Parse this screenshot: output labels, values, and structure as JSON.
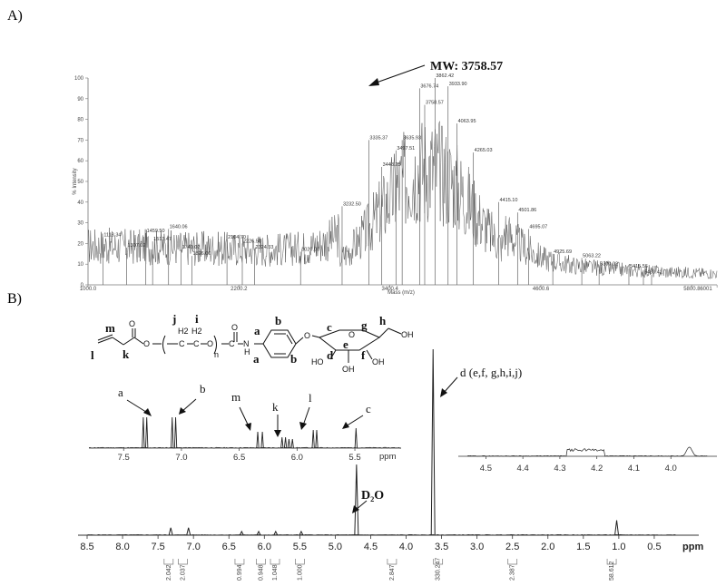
{
  "panels": {
    "a": {
      "label": "A)"
    },
    "b": {
      "label": "B)"
    }
  },
  "chart_data": [
    {
      "type": "line",
      "id": "maldi-tof",
      "title": "",
      "xlabel": "Mass (m/z)",
      "ylabel": "% Intensity",
      "xlim": [
        1000.0,
        6000.0
      ],
      "ylim": [
        0,
        100
      ],
      "x_ticks": [
        "1000.0",
        "2200.2",
        "3400.4",
        "4600.6",
        "5800.8",
        "6001"
      ],
      "x_tick_values": [
        1000.0,
        2200.2,
        3400.4,
        4600.6,
        5800.8,
        6001
      ],
      "y_ticks": [
        0,
        10,
        20,
        30,
        40,
        50,
        60,
        70,
        80,
        90,
        100
      ],
      "annotation": {
        "text": "MW: 3758.57",
        "x": 3758.57,
        "y": 97
      },
      "peaks": [
        {
          "x": 1118.34,
          "y": 23
        },
        {
          "x": 1307.02,
          "y": 18
        },
        {
          "x": 1459.5,
          "y": 25
        },
        {
          "x": 1513.47,
          "y": 21
        },
        {
          "x": 1640.06,
          "y": 27
        },
        {
          "x": 1740.02,
          "y": 17
        },
        {
          "x": 1826.0,
          "y": 14
        },
        {
          "x": 2104.7,
          "y": 22
        },
        {
          "x": 2226.5,
          "y": 20
        },
        {
          "x": 2324.33,
          "y": 17
        },
        {
          "x": 2690.0,
          "y": 16
        },
        {
          "x": 3020.0,
          "y": 38
        },
        {
          "x": 3232.5,
          "y": 70
        },
        {
          "x": 3335.37,
          "y": 57
        },
        {
          "x": 3448.25,
          "y": 65
        },
        {
          "x": 3497.51,
          "y": 70
        },
        {
          "x": 3635.93,
          "y": 95
        },
        {
          "x": 3676.74,
          "y": 87
        },
        {
          "x": 3758.57,
          "y": 100
        },
        {
          "x": 3862.42,
          "y": 96
        },
        {
          "x": 3933.9,
          "y": 78
        },
        {
          "x": 4063.95,
          "y": 64
        },
        {
          "x": 4265.03,
          "y": 40
        },
        {
          "x": 4415.1,
          "y": 35
        },
        {
          "x": 4501.86,
          "y": 27
        },
        {
          "x": 4695.07,
          "y": 15
        },
        {
          "x": 4925.69,
          "y": 13
        },
        {
          "x": 5063.22,
          "y": 9
        },
        {
          "x": 5300.02,
          "y": 8
        },
        {
          "x": 5415.56,
          "y": 5
        },
        {
          "x": 5480.41,
          "y": 5
        }
      ],
      "peak_labels": [
        "1118.34",
        "1307.02",
        "1459.50",
        "1513.47",
        "1640.06",
        "1740.02",
        "1826.00",
        "2104.70",
        "2226.50",
        "2324.33",
        "3020.00",
        "3232.50",
        "3335.37",
        "3448.25",
        "3497.51",
        "3635.93",
        "3676.74",
        "3758.57",
        "3862.42",
        "3933.90",
        "4063.95",
        "4265.03",
        "4415.10",
        "4501.86",
        "4695.07",
        "4925.69",
        "5063.22",
        "5300.02",
        "5415.56",
        "5480.41"
      ]
    },
    {
      "type": "line",
      "id": "h-nmr",
      "title": "",
      "xlabel": "ppm",
      "ylabel": "",
      "xlim": [
        8.5,
        0.0
      ],
      "x_ticks": [
        "8.5",
        "8.0",
        "7.5",
        "7.0",
        "6.5",
        "6.0",
        "5.5",
        "5.0",
        "4.5",
        "4.0",
        "3.5",
        "3.0",
        "2.5",
        "2.0",
        "1.5",
        "1.0",
        "0.5"
      ],
      "x_tick_values": [
        8.5,
        8.0,
        7.5,
        7.0,
        6.5,
        6.0,
        5.5,
        5.0,
        4.5,
        4.0,
        3.5,
        3.0,
        2.5,
        2.0,
        1.5,
        1.0,
        0.5
      ],
      "peaks": [
        {
          "x": 7.32,
          "y": 4,
          "label": "a"
        },
        {
          "x": 7.07,
          "y": 4,
          "label": "b"
        },
        {
          "x": 6.32,
          "y": 2,
          "label": "m"
        },
        {
          "x": 6.08,
          "y": 2,
          "label": "k"
        },
        {
          "x": 5.84,
          "y": 2,
          "label": "l"
        },
        {
          "x": 5.48,
          "y": 2,
          "label": "c"
        },
        {
          "x": 4.7,
          "y": 38,
          "label": "D2O"
        },
        {
          "x": 3.62,
          "y": 100,
          "label": "d (e,f, g,h,i,j)"
        },
        {
          "x": 1.03,
          "y": 8,
          "label": ""
        }
      ],
      "integrals": [
        {
          "x": 7.35,
          "value": "2.042"
        },
        {
          "x": 7.15,
          "value": "2.037"
        },
        {
          "x": 6.35,
          "value": "0.994"
        },
        {
          "x": 6.05,
          "value": "0.948"
        },
        {
          "x": 5.85,
          "value": "1.048"
        },
        {
          "x": 5.5,
          "value": "1.000"
        },
        {
          "x": 4.2,
          "value": "2.847"
        },
        {
          "x": 3.55,
          "value": "330.247"
        },
        {
          "x": 2.5,
          "value": "2.387"
        },
        {
          "x": 1.1,
          "value": "58.612"
        }
      ],
      "inset_aromatic": {
        "xlim": [
          7.8,
          5.1
        ],
        "x_ticks": [
          "7.5",
          "7.0",
          "6.5",
          "6.0",
          "5.5"
        ],
        "x_tick_values": [
          7.5,
          7.0,
          6.5,
          6.0,
          5.5
        ],
        "unit": "ppm"
      },
      "inset_anomeric": {
        "xlim": [
          4.55,
          3.9
        ],
        "x_ticks": [
          "4.5",
          "4.4",
          "4.3",
          "4.2",
          "4.1",
          "4.0"
        ],
        "x_tick_values": [
          4.5,
          4.4,
          4.3,
          4.2,
          4.1,
          4.0
        ]
      }
    }
  ],
  "structure": {
    "labels": {
      "m": "m",
      "l": "l",
      "k": "k",
      "j": "j",
      "i": "i",
      "n": "n",
      "a": "a",
      "b": "b",
      "c": "c",
      "d": "d",
      "e": "e",
      "f": "f",
      "g": "g",
      "h": "h"
    },
    "atoms": {
      "o1": "O",
      "o2": "O",
      "o3": "O",
      "o4": "O",
      "n": "N",
      "h": "H",
      "oh1": "OH",
      "oh2": "OH",
      "oh3": "OH",
      "ho": "HO",
      "ch2": "H2",
      "c": "C",
      "eq": "="
    }
  },
  "annotations": {
    "mw": "MW: 3758.57",
    "d2o": "D₂O",
    "d_label": "d (e,f, g,h,i,j)",
    "a": "a",
    "b": "b",
    "m": "m",
    "k": "k",
    "l": "l",
    "c": "c"
  },
  "colors": {
    "spectrum": "#555555",
    "nmr": "#222222",
    "axis": "#444444"
  }
}
